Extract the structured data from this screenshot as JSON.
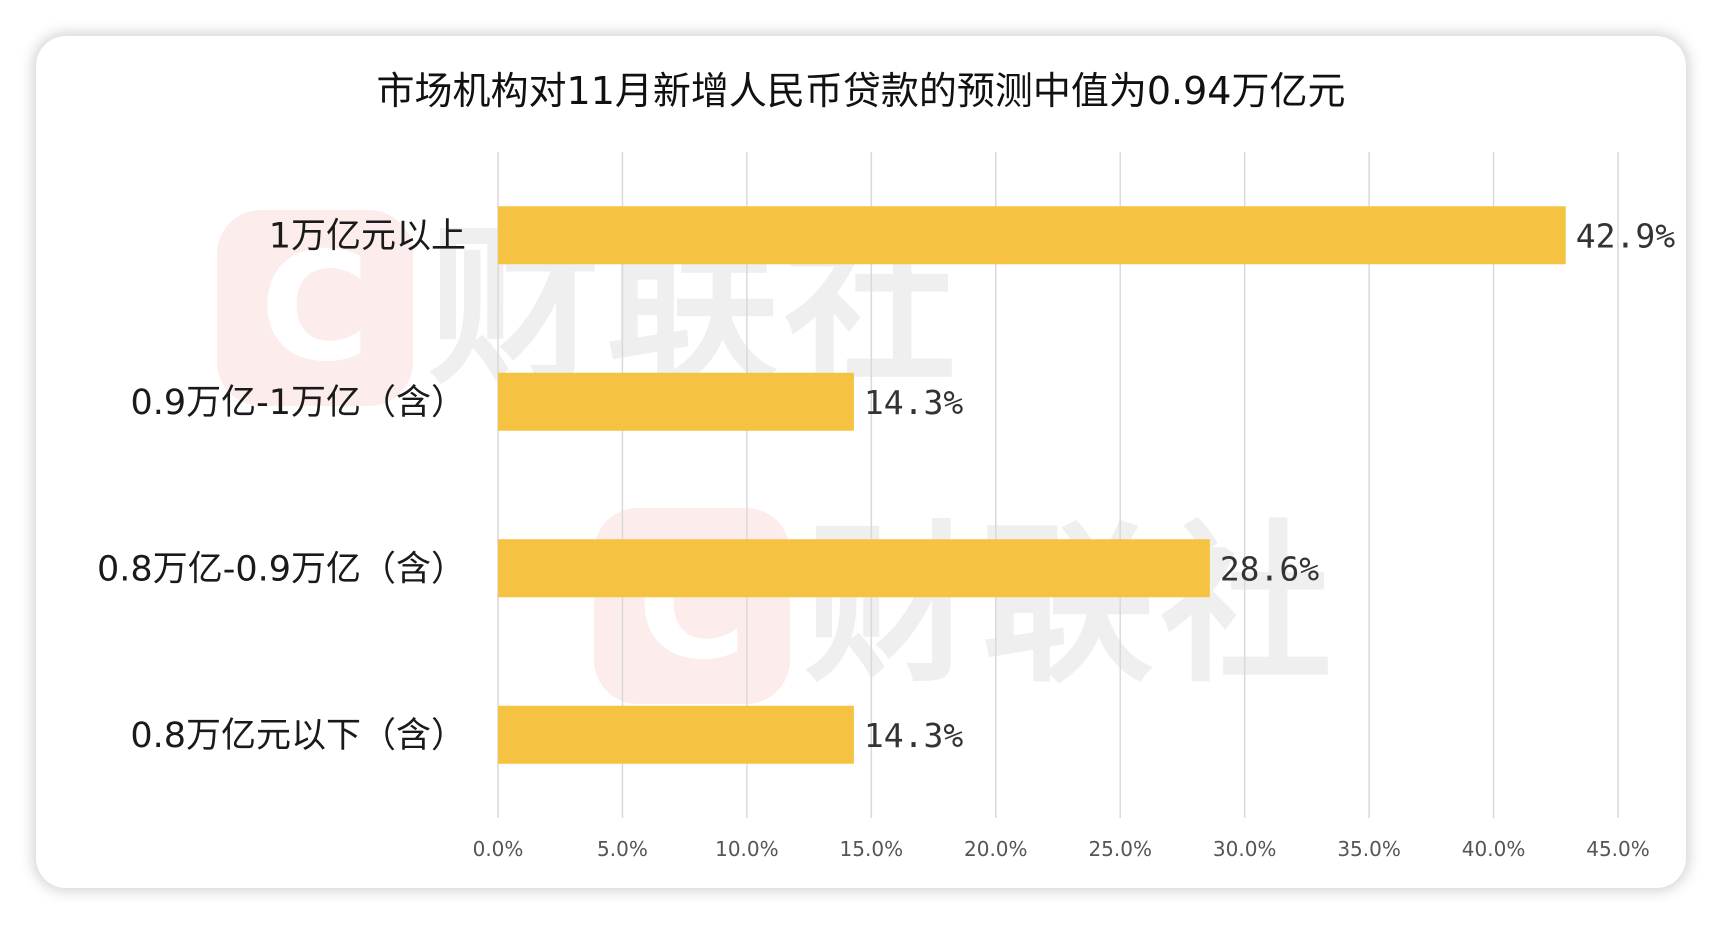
{
  "chart_data": {
    "type": "bar",
    "orientation": "horizontal",
    "title": "市场机构对11月新增人民币贷款的预测中值为0.94万亿元",
    "categories": [
      "1万亿元以上",
      "0.9万亿-1万亿（含）",
      "0.8万亿-0.9万亿（含）",
      "0.8万亿元以下（含）"
    ],
    "values": [
      42.9,
      14.3,
      28.6,
      14.3
    ],
    "value_labels": [
      "42.9%",
      "14.3%",
      "28.6%",
      "14.3%"
    ],
    "xlim": [
      0,
      45
    ],
    "x_ticks": [
      0,
      5,
      10,
      15,
      20,
      25,
      30,
      35,
      40,
      45
    ],
    "x_tick_labels": [
      "0.0%",
      "5.0%",
      "10.0%",
      "15.0%",
      "20.0%",
      "25.0%",
      "30.0%",
      "35.0%",
      "40.0%",
      "45.0%"
    ],
    "grid": "vertical",
    "legend": "none",
    "bar_color": "#F5C242"
  },
  "watermark": {
    "badge_letter": "C",
    "text": "财联社"
  }
}
